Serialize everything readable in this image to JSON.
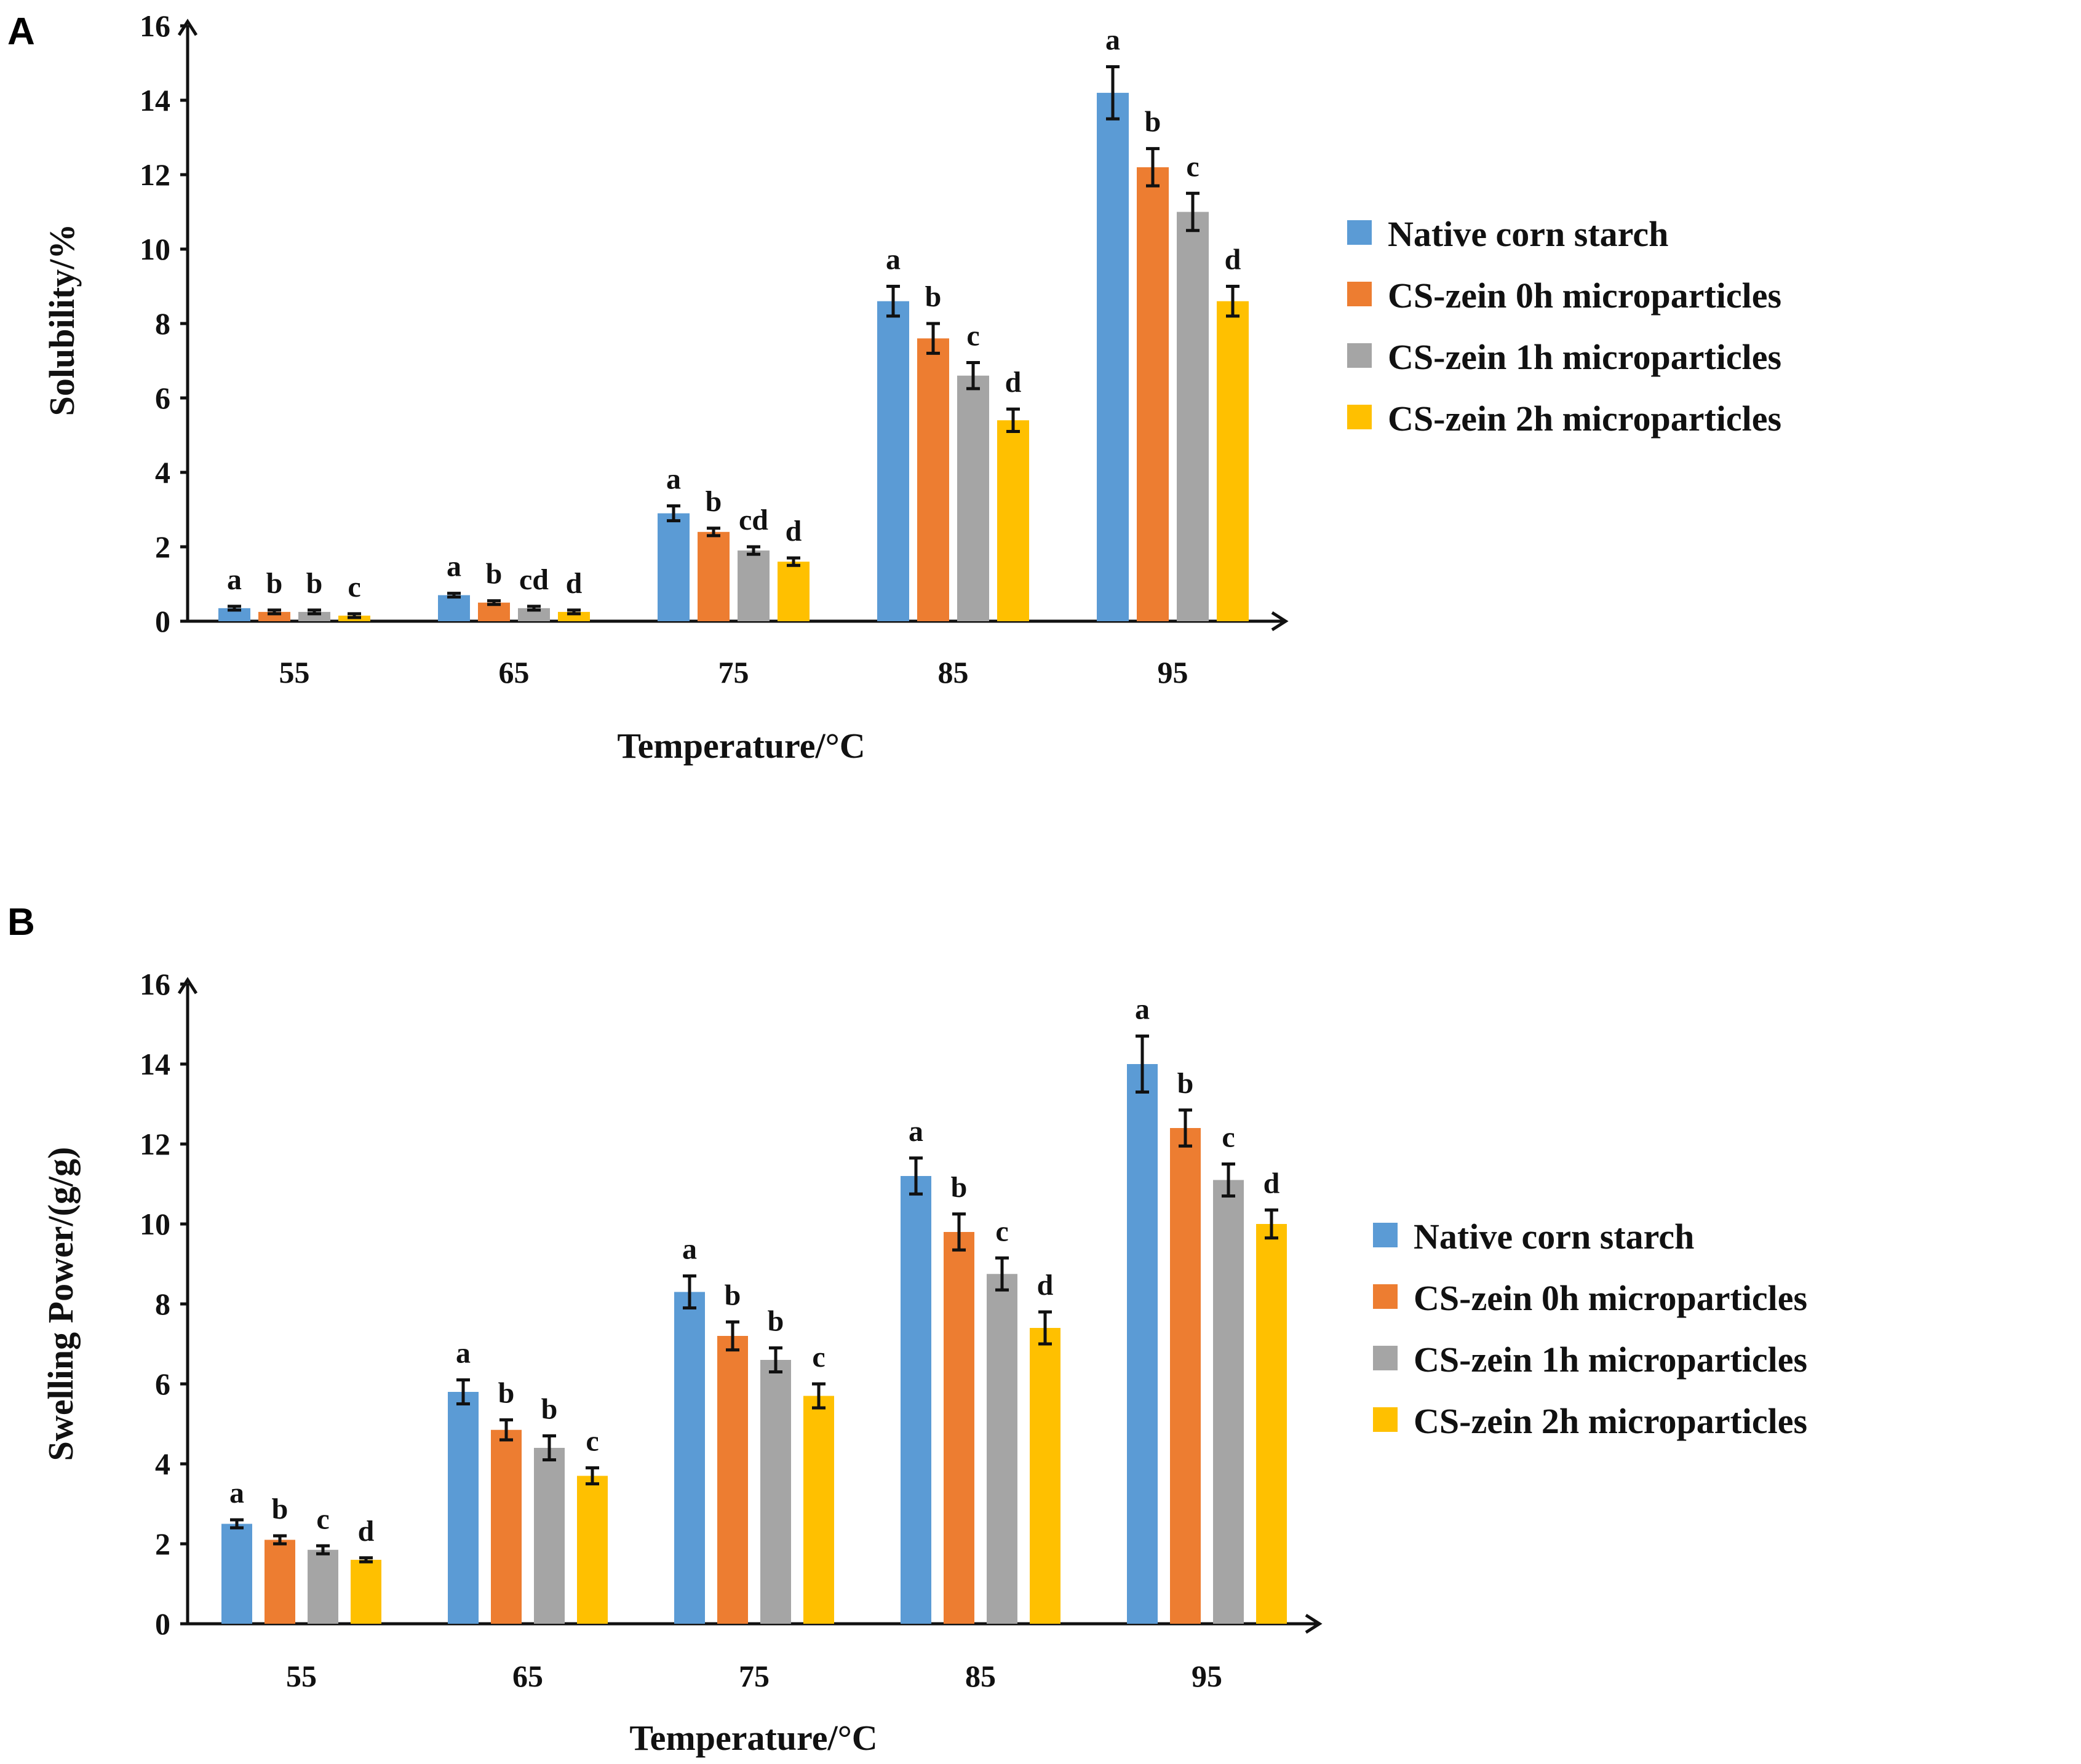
{
  "chart_data": [
    {
      "type": "bar",
      "panel": "A",
      "xlabel": "Temperature/°C",
      "ylabel": "Solubility/%",
      "ylim": [
        0,
        16
      ],
      "yticks": [
        "0",
        "2",
        "4",
        "6",
        "8",
        "10",
        "12",
        "14",
        "16"
      ],
      "categories": [
        "55",
        "65",
        "75",
        "85",
        "95"
      ],
      "series": [
        {
          "name": "Native corn starch",
          "color": "#5B9BD5",
          "values": [
            0.35,
            0.7,
            2.9,
            8.6,
            14.2
          ],
          "errors": [
            0.05,
            0.05,
            0.2,
            0.4,
            0.7
          ],
          "letters": [
            "a",
            "a",
            "a",
            "a",
            "a"
          ]
        },
        {
          "name": "CS-zein 0h microparticles",
          "color": "#ED7D31",
          "values": [
            0.25,
            0.5,
            2.4,
            7.6,
            12.2
          ],
          "errors": [
            0.05,
            0.05,
            0.1,
            0.4,
            0.5
          ],
          "letters": [
            "b",
            "b",
            "b",
            "b",
            "b"
          ]
        },
        {
          "name": "CS-zein 1h microparticles",
          "color": "#A5A5A5",
          "values": [
            0.25,
            0.35,
            1.9,
            6.6,
            11.0
          ],
          "errors": [
            0.05,
            0.05,
            0.1,
            0.35,
            0.5
          ],
          "letters": [
            "b",
            "cd",
            "cd",
            "c",
            "c"
          ]
        },
        {
          "name": "CS-zein 2h microparticles",
          "color": "#FFC000",
          "values": [
            0.15,
            0.25,
            1.6,
            5.4,
            8.6
          ],
          "errors": [
            0.05,
            0.05,
            0.1,
            0.3,
            0.4
          ],
          "letters": [
            "c",
            "d",
            "d",
            "d",
            "d"
          ]
        }
      ]
    },
    {
      "type": "bar",
      "panel": "B",
      "xlabel": "Temperature/°C",
      "ylabel": "Swelling Power/(g/g)",
      "ylim": [
        0,
        16
      ],
      "yticks": [
        "0",
        "2",
        "4",
        "6",
        "8",
        "10",
        "12",
        "14",
        "16"
      ],
      "categories": [
        "55",
        "65",
        "75",
        "85",
        "95"
      ],
      "series": [
        {
          "name": "Native corn starch",
          "color": "#5B9BD5",
          "values": [
            2.5,
            5.8,
            8.3,
            11.2,
            14.0
          ],
          "errors": [
            0.1,
            0.3,
            0.4,
            0.45,
            0.7
          ],
          "letters": [
            "a",
            "a",
            "a",
            "a",
            "a"
          ]
        },
        {
          "name": "CS-zein 0h microparticles",
          "color": "#ED7D31",
          "values": [
            2.1,
            4.85,
            7.2,
            9.8,
            12.4
          ],
          "errors": [
            0.1,
            0.25,
            0.35,
            0.45,
            0.45
          ],
          "letters": [
            "b",
            "b",
            "b",
            "b",
            "b"
          ]
        },
        {
          "name": "CS-zein 1h microparticles",
          "color": "#A5A5A5",
          "values": [
            1.85,
            4.4,
            6.6,
            8.75,
            11.1
          ],
          "errors": [
            0.1,
            0.3,
            0.3,
            0.4,
            0.4
          ],
          "letters": [
            "c",
            "b",
            "b",
            "c",
            "c"
          ]
        },
        {
          "name": "CS-zein 2h microparticles",
          "color": "#FFC000",
          "values": [
            1.6,
            3.7,
            5.7,
            7.4,
            10.0
          ],
          "errors": [
            0.05,
            0.2,
            0.3,
            0.4,
            0.35
          ],
          "letters": [
            "d",
            "c",
            "c",
            "d",
            "d"
          ]
        }
      ]
    }
  ]
}
